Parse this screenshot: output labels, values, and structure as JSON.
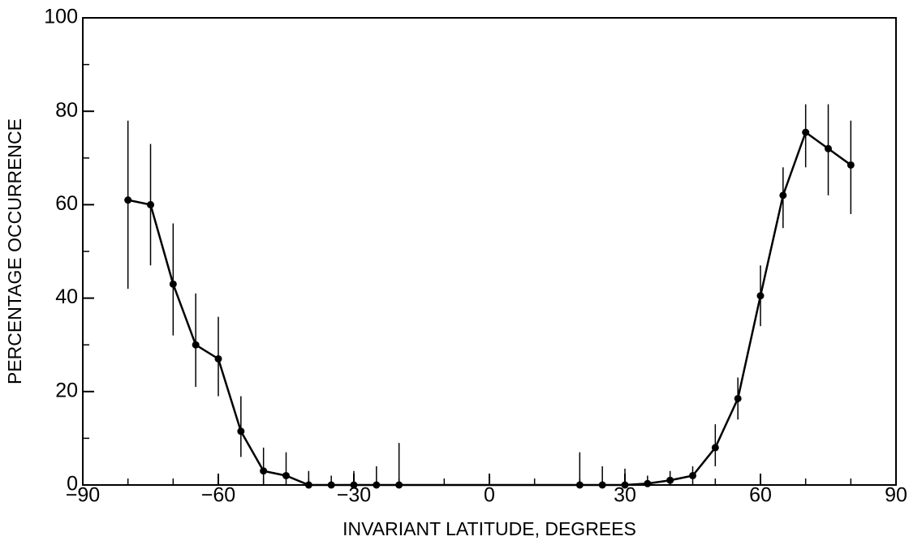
{
  "chart_data": {
    "type": "line",
    "xlabel": "INVARIANT LATITUDE, DEGREES",
    "ylabel": "PERCENTAGE OCCURRENCE",
    "xlim": [
      -90,
      90
    ],
    "xticks": [
      {
        "value": -90,
        "label": "−90"
      },
      {
        "value": -60,
        "label": "−60"
      },
      {
        "value": -30,
        "label": "−30"
      },
      0,
      30,
      60,
      90
    ],
    "xminorticks": [
      -80,
      -70,
      -50,
      -40,
      -20,
      -10,
      10,
      20,
      40,
      50,
      70,
      80
    ],
    "ylim": [
      0,
      100
    ],
    "yticks": [
      0,
      20,
      40,
      60,
      80,
      100
    ],
    "yminorticks": [
      10,
      30,
      50,
      70,
      90
    ],
    "series": [
      {
        "color": "#000000",
        "x": [
          -80,
          -75,
          -70,
          -65,
          -60,
          -55,
          -50,
          -45,
          -40,
          -35,
          -30,
          -25,
          -20,
          20,
          25,
          30,
          35,
          40,
          45,
          50,
          55,
          60,
          65,
          70,
          75,
          80
        ],
        "values": [
          61,
          60,
          43,
          30,
          27,
          11.5,
          3,
          2,
          0,
          0,
          0,
          0,
          0,
          0,
          0,
          0,
          0.3,
          1,
          2,
          8,
          18.5,
          40.5,
          62,
          75.5,
          72,
          68.5
        ],
        "lower": [
          42,
          47,
          32,
          21,
          19,
          6,
          0,
          0,
          0,
          0,
          0,
          0,
          0,
          0,
          0,
          0,
          0,
          0,
          0,
          4,
          14,
          34,
          55,
          68,
          62,
          58
        ],
        "upper": [
          78,
          73,
          56,
          41,
          36,
          19,
          8,
          7,
          3,
          2,
          3,
          4,
          9,
          7,
          4,
          3.5,
          2,
          3,
          4,
          13,
          23,
          47,
          68,
          81.5,
          81.5,
          78
        ]
      }
    ]
  }
}
